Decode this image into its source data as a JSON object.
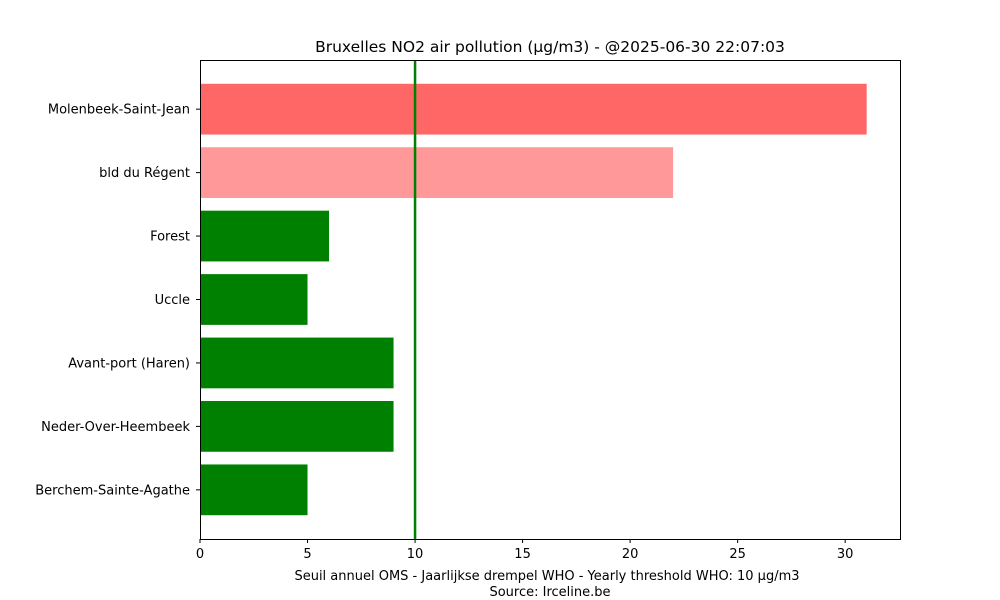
{
  "chart_data": {
    "type": "bar",
    "orientation": "horizontal",
    "title": "Bruxelles NO2 air pollution (µg/m3) - @2025-06-30 22:07:03",
    "xlabel_lines": [
      "Seuil annuel OMS - Jaarlijkse drempel WHO - Yearly threshold WHO: 10 µg/m3",
      "Source: Irceline.be"
    ],
    "ylabel": "",
    "categories": [
      "Molenbeek-Saint-Jean",
      "bld du Régent",
      "Forest",
      "Uccle",
      "Avant-port (Haren)",
      "Neder-Over-Heembeek",
      "Berchem-Sainte-Agathe"
    ],
    "values": [
      31,
      22,
      6,
      5,
      9,
      9,
      5
    ],
    "bar_colors": [
      "#ff6666",
      "#ff9999",
      "#008000",
      "#008000",
      "#008000",
      "#008000",
      "#008000"
    ],
    "threshold": {
      "value": 10,
      "color": "#008000"
    },
    "xlim": [
      0,
      32.55
    ],
    "xticks": [
      0,
      5,
      10,
      15,
      20,
      25,
      30
    ],
    "grid": false
  }
}
